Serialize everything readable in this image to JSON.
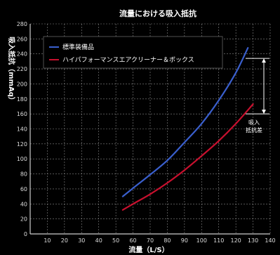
{
  "chart_data": {
    "type": "line",
    "title": "流量における吸入抵抗",
    "xlabel": "流量（L/S）",
    "ylabel": "吸入抵抗（mmAq）",
    "xlim": [
      0,
      140
    ],
    "ylim": [
      0,
      280
    ],
    "xticks": [
      "10",
      "20",
      "30",
      "40",
      "50",
      "60",
      "70",
      "80",
      "90",
      "100",
      "110",
      "120",
      "130",
      "140"
    ],
    "yticks": [
      "0",
      "20",
      "40",
      "60",
      "80",
      "100",
      "120",
      "140",
      "160",
      "180",
      "200",
      "220",
      "240",
      "260",
      "280"
    ],
    "grid": true,
    "legend_position": "top-left",
    "series": [
      {
        "name": "標準装備品",
        "color": "#3a5fcd",
        "x": [
          54,
          60,
          70,
          80,
          90,
          100,
          110,
          120,
          127
        ],
        "y": [
          50,
          61,
          79,
          98,
          122,
          147,
          178,
          215,
          248
        ]
      },
      {
        "name": "ハイパフォーマンスエアクリーナー＆ボックス",
        "color": "#c8102e",
        "x": [
          54,
          60,
          70,
          80,
          90,
          100,
          110,
          120,
          130
        ],
        "y": [
          32,
          40,
          53,
          68,
          85,
          104,
          124,
          147,
          173
        ]
      }
    ],
    "annotation": {
      "text_line1": "吸入",
      "text_line2": "抵抗差"
    }
  }
}
